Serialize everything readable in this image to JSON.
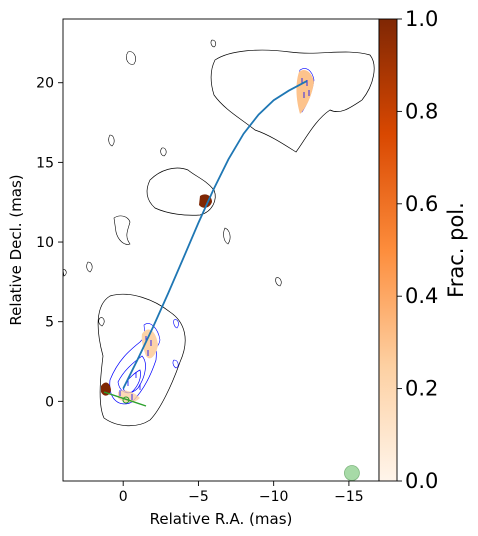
{
  "chart_data": {
    "type": "contour",
    "title": "",
    "xlabel": "Relative R.A. (mas)",
    "ylabel": "Relative Decl. (mas)",
    "xlim": [
      4.0,
      -17.0
    ],
    "ylim": [
      -5.0,
      24.0
    ],
    "x_ticks": [
      0,
      -5,
      -10,
      -15
    ],
    "x_tick_labels": [
      "0",
      "−5",
      "−10",
      "−15"
    ],
    "y_ticks": [
      0,
      5,
      10,
      15,
      20
    ],
    "y_tick_labels": [
      "0",
      "5",
      "10",
      "15",
      "20"
    ],
    "colorbar": {
      "label": "Frac. pol.",
      "range": [
        0.0,
        1.0
      ],
      "ticks": [
        0.0,
        0.2,
        0.4,
        0.6,
        0.8,
        1.0
      ],
      "tick_labels": [
        "0.0",
        "0.2",
        "0.4",
        "0.6",
        "0.8",
        "1.0"
      ],
      "colormap": "Oranges",
      "colors": [
        "#fff5eb",
        "#fdd0a2",
        "#fd8d3c",
        "#d94801",
        "#7f2704"
      ]
    },
    "jet_ridge_line": {
      "color": "#1f77b4",
      "x": [
        0,
        -1,
        -2,
        -3,
        -4,
        -5,
        -6,
        -7,
        -8,
        -9,
        -10,
        -11,
        -12.2
      ],
      "y": [
        0.8,
        2.7,
        4.7,
        6.8,
        9.0,
        11.2,
        13.3,
        15.2,
        16.8,
        18.0,
        18.9,
        19.5,
        20.1
      ]
    },
    "polarized_regions": [
      {
        "x": -11.0,
        "y": 19.5,
        "frac_pol": 0.25
      },
      {
        "x": -5.0,
        "y": 12.5,
        "frac_pol": 0.95
      },
      {
        "x": -1.5,
        "y": 3.5,
        "frac_pol": 0.2
      },
      {
        "x": 1.3,
        "y": 0.7,
        "frac_pol": 0.9
      }
    ],
    "contour_colors": {
      "total_intensity": "#000000",
      "polarized_intensity": "#0000ff"
    },
    "beam": {
      "x": -15.2,
      "y": -4.5,
      "color": "#98d498"
    }
  }
}
